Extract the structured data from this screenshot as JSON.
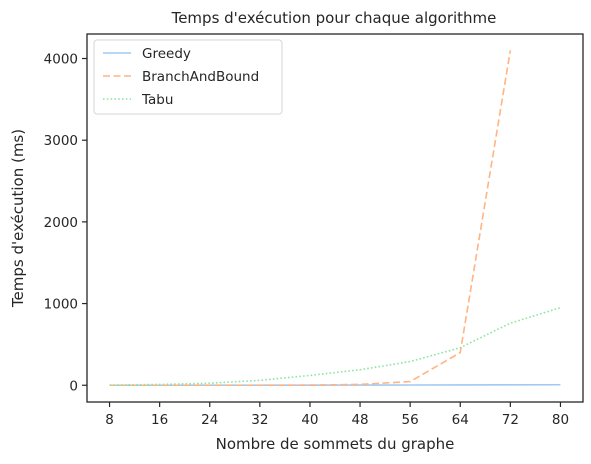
{
  "chart_data": {
    "type": "line",
    "title": "Temps d'exécution pour chaque algorithme",
    "xlabel": "Nombre de sommets du graphe",
    "ylabel": "Temps d'exécution (ms)",
    "x": [
      8,
      16,
      24,
      32,
      40,
      48,
      56,
      64,
      72,
      80
    ],
    "xticks": [
      8,
      16,
      24,
      32,
      40,
      48,
      56,
      64,
      72,
      80
    ],
    "yticks": [
      0,
      1000,
      2000,
      3000,
      4000
    ],
    "xlim": [
      4.4,
      83.6
    ],
    "ylim": [
      -205,
      4300
    ],
    "grid": false,
    "legend_position": "upper-left",
    "series": [
      {
        "name": "Greedy",
        "color": "#a1c9f4",
        "style": "solid",
        "x": [
          8,
          16,
          24,
          32,
          40,
          48,
          56,
          64,
          72,
          80
        ],
        "values": [
          0,
          0,
          1,
          1,
          1,
          2,
          3,
          4,
          5,
          6
        ]
      },
      {
        "name": "BranchAndBound",
        "color": "#ffb482",
        "style": "dashed",
        "x": [
          8,
          16,
          24,
          32,
          40,
          48,
          56,
          64,
          72
        ],
        "values": [
          0,
          0,
          0,
          0,
          2,
          10,
          45,
          400,
          4100
        ]
      },
      {
        "name": "Tabu",
        "color": "#8de5a1",
        "style": "dotted",
        "x": [
          8,
          16,
          24,
          32,
          40,
          48,
          56,
          64,
          72,
          80
        ],
        "values": [
          2,
          10,
          25,
          60,
          120,
          190,
          290,
          460,
          760,
          950
        ]
      }
    ]
  }
}
